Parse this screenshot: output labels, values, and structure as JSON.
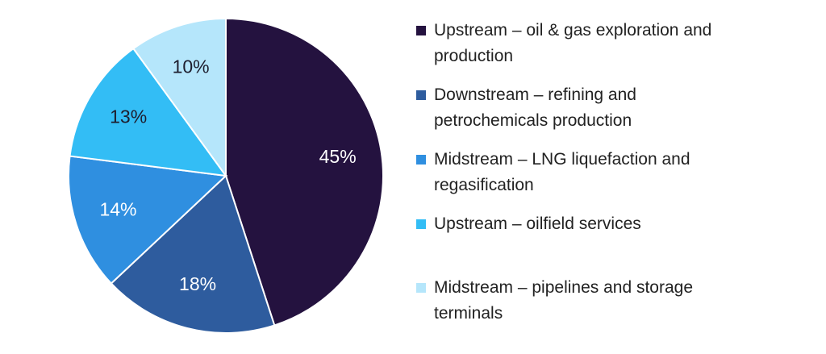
{
  "chart_data": {
    "type": "pie",
    "categories": [
      "Upstream – oil & gas exploration and production",
      "Downstream – refining and petrochemicals production",
      "Midstream – LNG liquefaction and regasification",
      "Upstream – oilfield services",
      "Midstream – pipelines and storage terminals"
    ],
    "values": [
      45,
      18,
      14,
      13,
      10
    ],
    "value_labels": [
      "45%",
      "18%",
      "14%",
      "13%",
      "10%"
    ],
    "colors": [
      "#24123f",
      "#2e5c9e",
      "#2f8fe0",
      "#33bdf5",
      "#b5e6fb"
    ]
  }
}
